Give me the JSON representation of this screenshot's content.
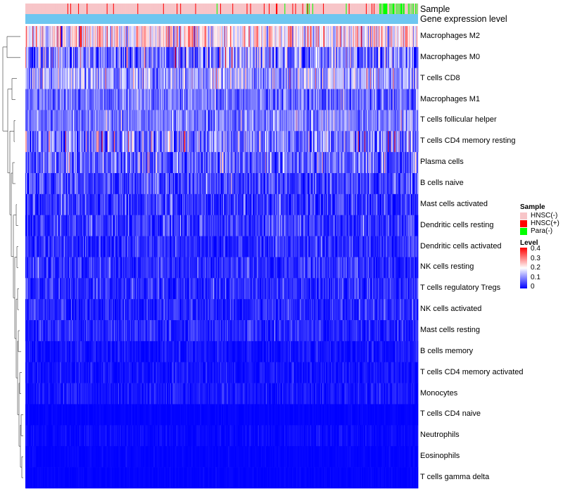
{
  "chart_data": {
    "type": "heatmap",
    "title": "",
    "annotations": [
      {
        "name": "Sample",
        "label": "Sample"
      },
      {
        "name": "Gene expression level",
        "label": "Gene expression level",
        "color": "#6EC6F0"
      }
    ],
    "sample_legend": {
      "title": "Sample",
      "items": [
        {
          "label": "HNSC(-)",
          "color": "#F7C5C8"
        },
        {
          "label": "HNSC(+)",
          "color": "#FF0000"
        },
        {
          "label": "Para(-)",
          "color": "#00FF00"
        }
      ]
    },
    "level_legend": {
      "title": "Level",
      "ticks": [
        "0.4",
        "0.3",
        "0.2",
        "0.1",
        "0"
      ],
      "range": [
        0,
        0.4
      ],
      "colors": [
        "#0000FF",
        "#FFFFFF",
        "#FF0000"
      ]
    },
    "rows": [
      {
        "label": "Macrophages M2",
        "mean": 0.2,
        "sd": 0.07
      },
      {
        "label": "Macrophages M0",
        "mean": 0.09,
        "sd": 0.08
      },
      {
        "label": "T cells CD8",
        "mean": 0.12,
        "sd": 0.055
      },
      {
        "label": "Macrophages M1",
        "mean": 0.08,
        "sd": 0.045
      },
      {
        "label": "T cells follicular helper",
        "mean": 0.095,
        "sd": 0.04
      },
      {
        "label": "T cells CD4 memory resting",
        "mean": 0.09,
        "sd": 0.07
      },
      {
        "label": "Plasma cells",
        "mean": 0.07,
        "sd": 0.06
      },
      {
        "label": "B cells naive",
        "mean": 0.045,
        "sd": 0.04
      },
      {
        "label": "Mast cells activated",
        "mean": 0.035,
        "sd": 0.04
      },
      {
        "label": "Dendritic cells resting",
        "mean": 0.035,
        "sd": 0.035
      },
      {
        "label": "Dendritic cells activated",
        "mean": 0.03,
        "sd": 0.03
      },
      {
        "label": "NK cells resting",
        "mean": 0.03,
        "sd": 0.03
      },
      {
        "label": "T cells regulatory  Tregs",
        "mean": 0.03,
        "sd": 0.028
      },
      {
        "label": "NK cells activated",
        "mean": 0.025,
        "sd": 0.025
      },
      {
        "label": "Mast cells resting",
        "mean": 0.025,
        "sd": 0.025
      },
      {
        "label": "B cells memory",
        "mean": 0.012,
        "sd": 0.015
      },
      {
        "label": "T cells CD4 memory activated",
        "mean": 0.012,
        "sd": 0.015
      },
      {
        "label": "Monocytes",
        "mean": 0.015,
        "sd": 0.016
      },
      {
        "label": "T cells CD4 naive",
        "mean": 0.002,
        "sd": 0.004
      },
      {
        "label": "Neutrophils",
        "mean": 0.006,
        "sd": 0.008
      },
      {
        "label": "Eosinophils",
        "mean": 0.002,
        "sd": 0.004
      },
      {
        "label": "T cells gamma delta",
        "mean": 0.002,
        "sd": 0.004
      }
    ],
    "n_columns": 550,
    "dendrogram": "hierarchical clustering of rows shown on the left"
  }
}
